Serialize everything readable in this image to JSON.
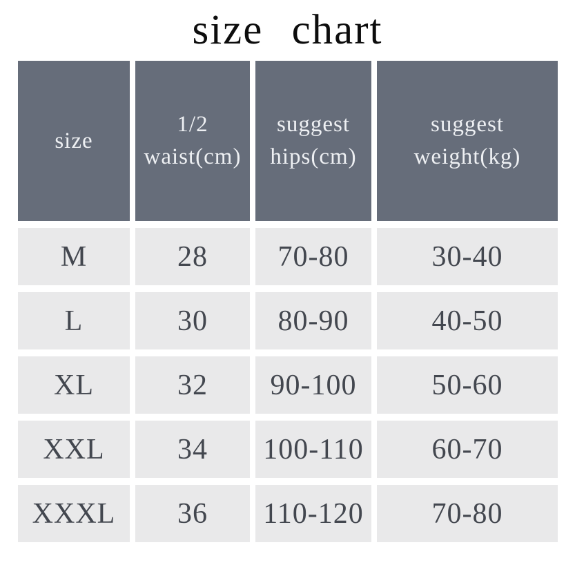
{
  "title": "size chart",
  "colors": {
    "page_background": "#ffffff",
    "header_cell_background": "#666d7a",
    "header_cell_text": "#eef0f3",
    "data_cell_background": "#e9e9ea",
    "data_cell_text": "#43474f",
    "title_text": "#0d0d0d"
  },
  "table": {
    "headers": [
      {
        "lines": [
          "size"
        ]
      },
      {
        "lines": [
          "1/2",
          "waist(cm)"
        ]
      },
      {
        "lines": [
          "suggest",
          "hips(cm)"
        ]
      },
      {
        "lines": [
          "suggest weight(kg)"
        ]
      }
    ],
    "rows": [
      [
        "M",
        "28",
        "70-80",
        "30-40"
      ],
      [
        "L",
        "30",
        "80-90",
        "40-50"
      ],
      [
        "XL",
        "32",
        "90-100",
        "50-60"
      ],
      [
        "XXL",
        "34",
        "100-110",
        "60-70"
      ],
      [
        "XXXL",
        "36",
        "110-120",
        "70-80"
      ]
    ]
  },
  "chart_data": {
    "type": "table",
    "title": "size chart",
    "columns": [
      "size",
      "1/2 waist(cm)",
      "suggest hips(cm)",
      "suggest weight(kg)"
    ],
    "rows": [
      {
        "size": "M",
        "half_waist_cm": 28,
        "suggest_hips_cm": "70-80",
        "suggest_weight_kg": "30-40"
      },
      {
        "size": "L",
        "half_waist_cm": 30,
        "suggest_hips_cm": "80-90",
        "suggest_weight_kg": "40-50"
      },
      {
        "size": "XL",
        "half_waist_cm": 32,
        "suggest_hips_cm": "90-100",
        "suggest_weight_kg": "50-60"
      },
      {
        "size": "XXL",
        "half_waist_cm": 34,
        "suggest_hips_cm": "100-110",
        "suggest_weight_kg": "60-70"
      },
      {
        "size": "XXXL",
        "half_waist_cm": 36,
        "suggest_hips_cm": "110-120",
        "suggest_weight_kg": "70-80"
      }
    ]
  }
}
